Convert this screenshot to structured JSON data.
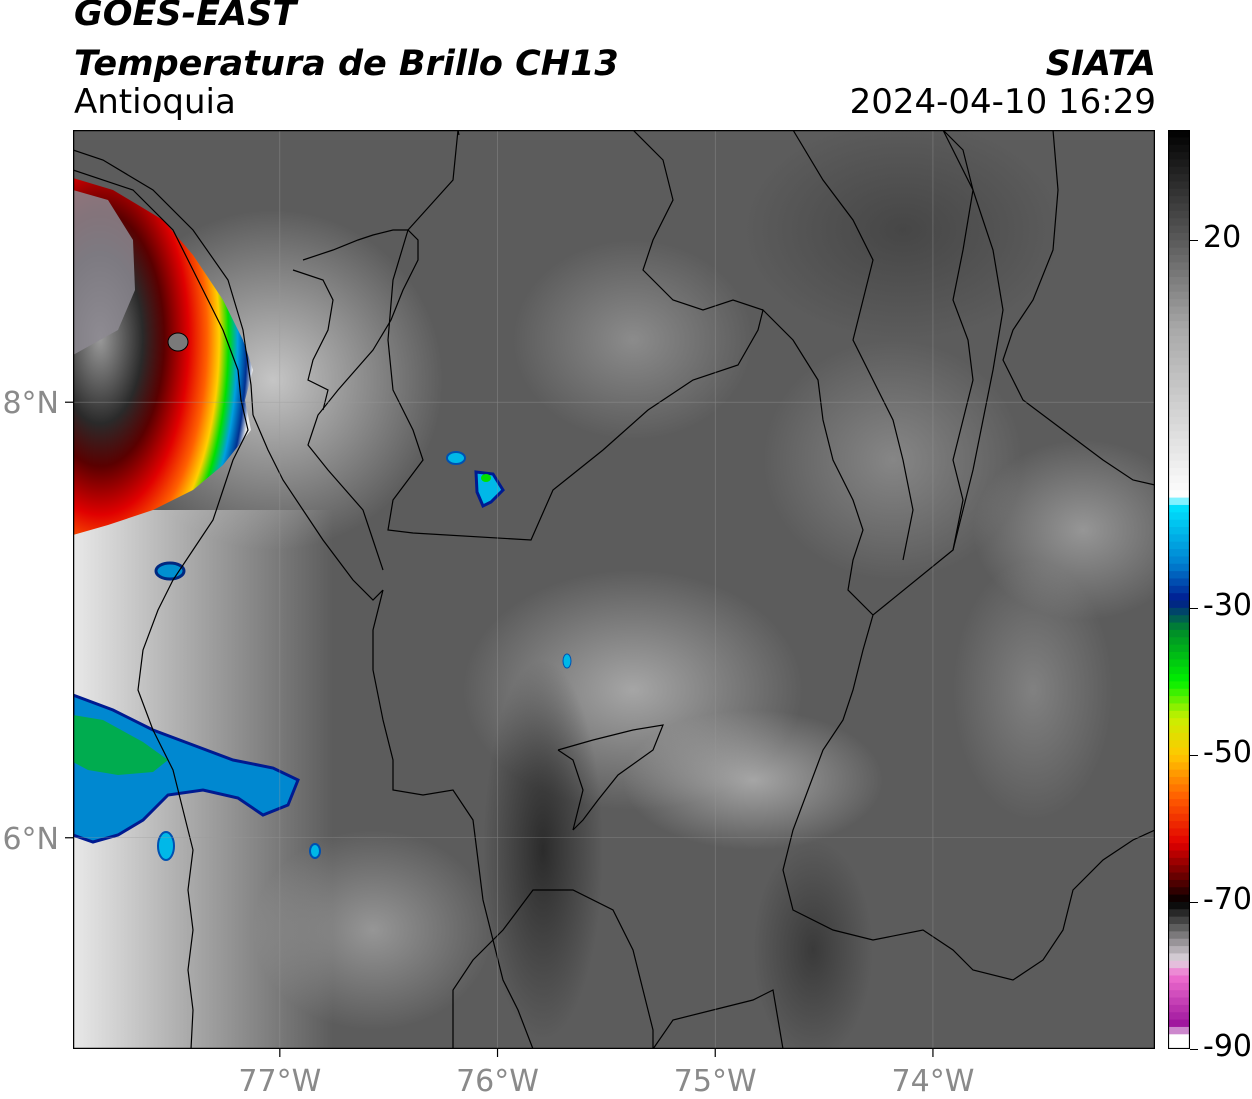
{
  "header": {
    "satellite": "GOES-EAST",
    "product": "Temperatura de Brillo CH13",
    "region": "Antioquia",
    "agency": "SIATA",
    "datetime": "2024-04-10 16:29"
  },
  "map": {
    "lon_range": [
      -77.95,
      -72.98
    ],
    "lat_range": [
      5.03,
      9.25
    ],
    "lon_ticks": [
      {
        "value": -77,
        "label": "77°W"
      },
      {
        "value": -76,
        "label": "76°W"
      },
      {
        "value": -75,
        "label": "75°W"
      },
      {
        "value": -74,
        "label": "74°W"
      }
    ],
    "lat_ticks": [
      {
        "value": 8,
        "label": "8°N"
      },
      {
        "value": 6,
        "label": "6°N"
      }
    ],
    "grid": true,
    "background_color": "#5c5c5c",
    "boundary_color": "#000000"
  },
  "colorbar": {
    "range": [
      -90,
      35
    ],
    "tick_labels": [
      {
        "value": 20,
        "label": "20"
      },
      {
        "value": -30,
        "label": "-30"
      },
      {
        "value": -50,
        "label": "-50"
      },
      {
        "value": -70,
        "label": "-70"
      },
      {
        "value": -90,
        "label": "-90"
      }
    ],
    "stops": [
      {
        "value": 35,
        "color": "#000000"
      },
      {
        "value": 20,
        "color": "#5a5a5a"
      },
      {
        "value": 8,
        "color": "#a8a8a8"
      },
      {
        "value": -15,
        "color": "#ffffff"
      },
      {
        "value": -16,
        "color": "#00e5ff"
      },
      {
        "value": -24,
        "color": "#0080d0"
      },
      {
        "value": -29,
        "color": "#001a90"
      },
      {
        "value": -33,
        "color": "#008a2a"
      },
      {
        "value": -40,
        "color": "#00f000"
      },
      {
        "value": -45,
        "color": "#c8f000"
      },
      {
        "value": -50,
        "color": "#ffc800"
      },
      {
        "value": -56,
        "color": "#ff5a00"
      },
      {
        "value": -62,
        "color": "#e00000"
      },
      {
        "value": -68,
        "color": "#400000"
      },
      {
        "value": -70,
        "color": "#000000"
      },
      {
        "value": -73,
        "color": "#505050"
      },
      {
        "value": -78,
        "color": "#e0d8e0"
      },
      {
        "value": -80,
        "color": "#f070d0"
      },
      {
        "value": -87,
        "color": "#9a109a"
      },
      {
        "value": -88,
        "color": "#ffffff"
      },
      {
        "value": -90,
        "color": "#ffffff"
      }
    ]
  }
}
